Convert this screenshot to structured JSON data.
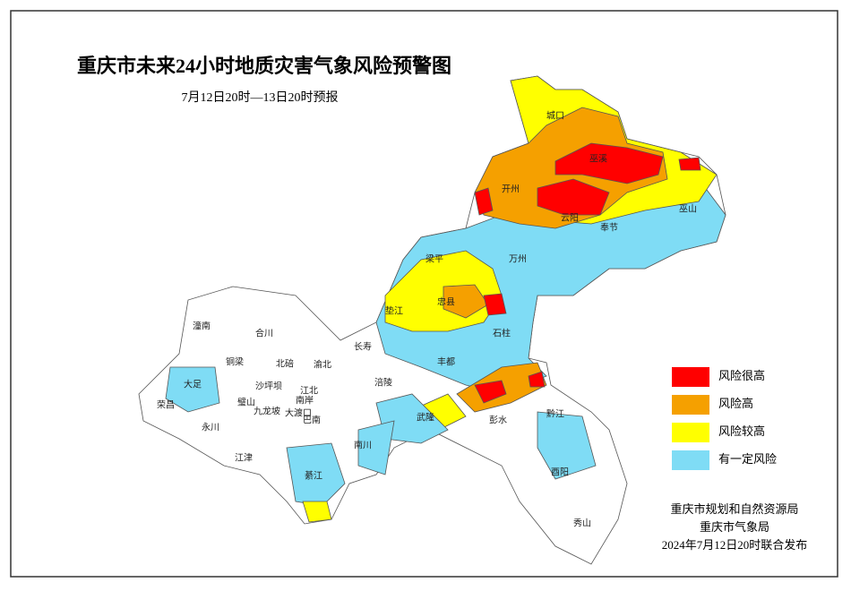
{
  "title": "重庆市未来24小时地质灾害气象风险预警图",
  "subtitle": "7月12日20时—13日20时预报",
  "districts": [
    {
      "name": "城口"
    },
    {
      "name": "巫溪"
    },
    {
      "name": "开州"
    },
    {
      "name": "云阳"
    },
    {
      "name": "奉节"
    },
    {
      "name": "巫山"
    },
    {
      "name": "万州"
    },
    {
      "name": "梁平"
    },
    {
      "name": "垫江"
    },
    {
      "name": "忠县"
    },
    {
      "name": "石柱"
    },
    {
      "name": "长寿"
    },
    {
      "name": "丰都"
    },
    {
      "name": "潼南"
    },
    {
      "name": "合川"
    },
    {
      "name": "铜梁"
    },
    {
      "name": "北碚"
    },
    {
      "name": "渝北"
    },
    {
      "name": "大足"
    },
    {
      "name": "璧山"
    },
    {
      "name": "沙坪坝"
    },
    {
      "name": "江北"
    },
    {
      "name": "涪陵"
    },
    {
      "name": "荣昌"
    },
    {
      "name": "九龙坡"
    },
    {
      "name": "南岸"
    },
    {
      "name": "大渡口"
    },
    {
      "name": "巴南"
    },
    {
      "name": "永川"
    },
    {
      "name": "武隆"
    },
    {
      "name": "彭水"
    },
    {
      "name": "黔江"
    },
    {
      "name": "江津"
    },
    {
      "name": "南川"
    },
    {
      "name": "綦江"
    },
    {
      "name": "酉阳"
    },
    {
      "name": "秀山"
    }
  ],
  "legend": [
    {
      "label": "风险很高",
      "color": "#ff0000"
    },
    {
      "label": "风险高",
      "color": "#f5a000"
    },
    {
      "label": "风险较高",
      "color": "#ffff00"
    },
    {
      "label": "有一定风险",
      "color": "#7fdcf5"
    }
  ],
  "publishers": [
    "重庆市规划和自然资源局",
    "重庆市气象局",
    "2024年7月12日20时联合发布"
  ]
}
